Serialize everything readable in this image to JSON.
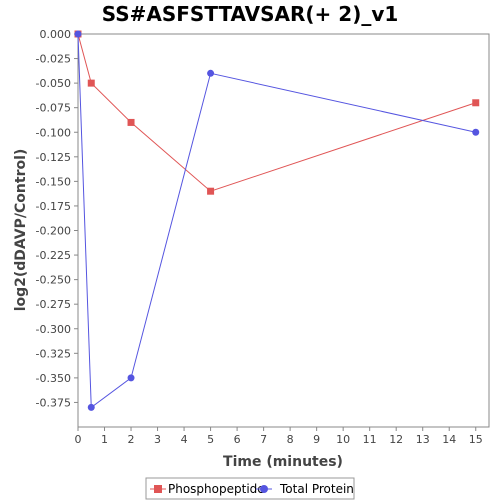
{
  "chart_data": {
    "type": "line",
    "title": "SS#ASFSTTAVSAR(+ 2)_v1",
    "xlabel": "Time (minutes)",
    "ylabel": "log2(dDAVP/Control)",
    "xlim": [
      0,
      15.5
    ],
    "ylim": [
      -0.4,
      0.0
    ],
    "x_ticks": [
      0,
      1,
      2,
      3,
      4,
      5,
      6,
      7,
      8,
      9,
      10,
      11,
      12,
      13,
      14,
      15
    ],
    "y_ticks": [
      0.0,
      -0.025,
      -0.05,
      -0.075,
      -0.1,
      -0.125,
      -0.15,
      -0.175,
      -0.2,
      -0.225,
      -0.25,
      -0.275,
      -0.3,
      -0.325,
      -0.35,
      -0.375
    ],
    "y_tick_labels": [
      "0.000",
      "-0.025",
      "-0.050",
      "-0.075",
      "-0.100",
      "-0.125",
      "-0.150",
      "-0.175",
      "-0.200",
      "-0.225",
      "-0.250",
      "-0.275",
      "-0.300",
      "-0.325",
      "-0.350",
      "-0.375"
    ],
    "grid": false,
    "legend_position": "bottom",
    "series": [
      {
        "name": "Phosphopeptide",
        "color": "#e05555",
        "marker": "square",
        "x": [
          0,
          0.5,
          2,
          5,
          15
        ],
        "y": [
          0.0,
          -0.05,
          -0.09,
          -0.16,
          -0.07
        ]
      },
      {
        "name": "Total Protein",
        "color": "#5555e0",
        "marker": "circle",
        "x": [
          0,
          0.5,
          2,
          5,
          15
        ],
        "y": [
          0.0,
          -0.38,
          -0.35,
          -0.04,
          -0.1
        ]
      }
    ]
  }
}
